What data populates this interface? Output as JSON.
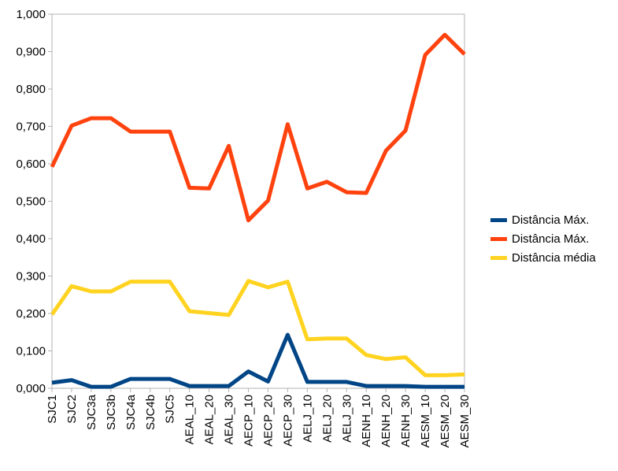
{
  "chart_data": {
    "type": "line",
    "categories": [
      "SJC1",
      "SJC2",
      "SJC3a",
      "SJC3b",
      "SJC4a",
      "SJC4b",
      "SJC5",
      "AEAL_10",
      "AEAL_20",
      "AEAL_30",
      "AECP_10",
      "AECP_20",
      "AECP_30",
      "AELJ_10",
      "AELJ_20",
      "AELJ_30",
      "AENH_10",
      "AENH_20",
      "AENH_30",
      "AESM_10",
      "AESM_20",
      "AESM_30"
    ],
    "y_ticks": [
      "0,000",
      "0,100",
      "0,200",
      "0,300",
      "0,400",
      "0,500",
      "0,600",
      "0,700",
      "0,800",
      "0,900",
      "1,000"
    ],
    "ylim": [
      0,
      1
    ],
    "grid": "none",
    "legend_position": "right",
    "series": [
      {
        "name": "Distância Máx.",
        "color": "#004586",
        "values": [
          0.015,
          0.022,
          0.004,
          0.004,
          0.025,
          0.025,
          0.025,
          0.006,
          0.006,
          0.006,
          0.045,
          0.018,
          0.143,
          0.017,
          0.017,
          0.017,
          0.006,
          0.006,
          0.006,
          0.004,
          0.004,
          0.004
        ]
      },
      {
        "name": "Distância Máx.",
        "color": "#ff420e",
        "values": [
          0.592,
          0.702,
          0.722,
          0.722,
          0.686,
          0.686,
          0.686,
          0.536,
          0.534,
          0.648,
          0.449,
          0.502,
          0.706,
          0.534,
          0.552,
          0.524,
          0.522,
          0.635,
          0.689,
          0.891,
          0.945,
          0.893
        ]
      },
      {
        "name": "Distância média",
        "color": "#ffd320",
        "values": [
          0.197,
          0.273,
          0.259,
          0.259,
          0.285,
          0.285,
          0.285,
          0.206,
          0.201,
          0.196,
          0.287,
          0.27,
          0.285,
          0.131,
          0.133,
          0.133,
          0.089,
          0.078,
          0.083,
          0.035,
          0.035,
          0.037
        ]
      }
    ]
  }
}
